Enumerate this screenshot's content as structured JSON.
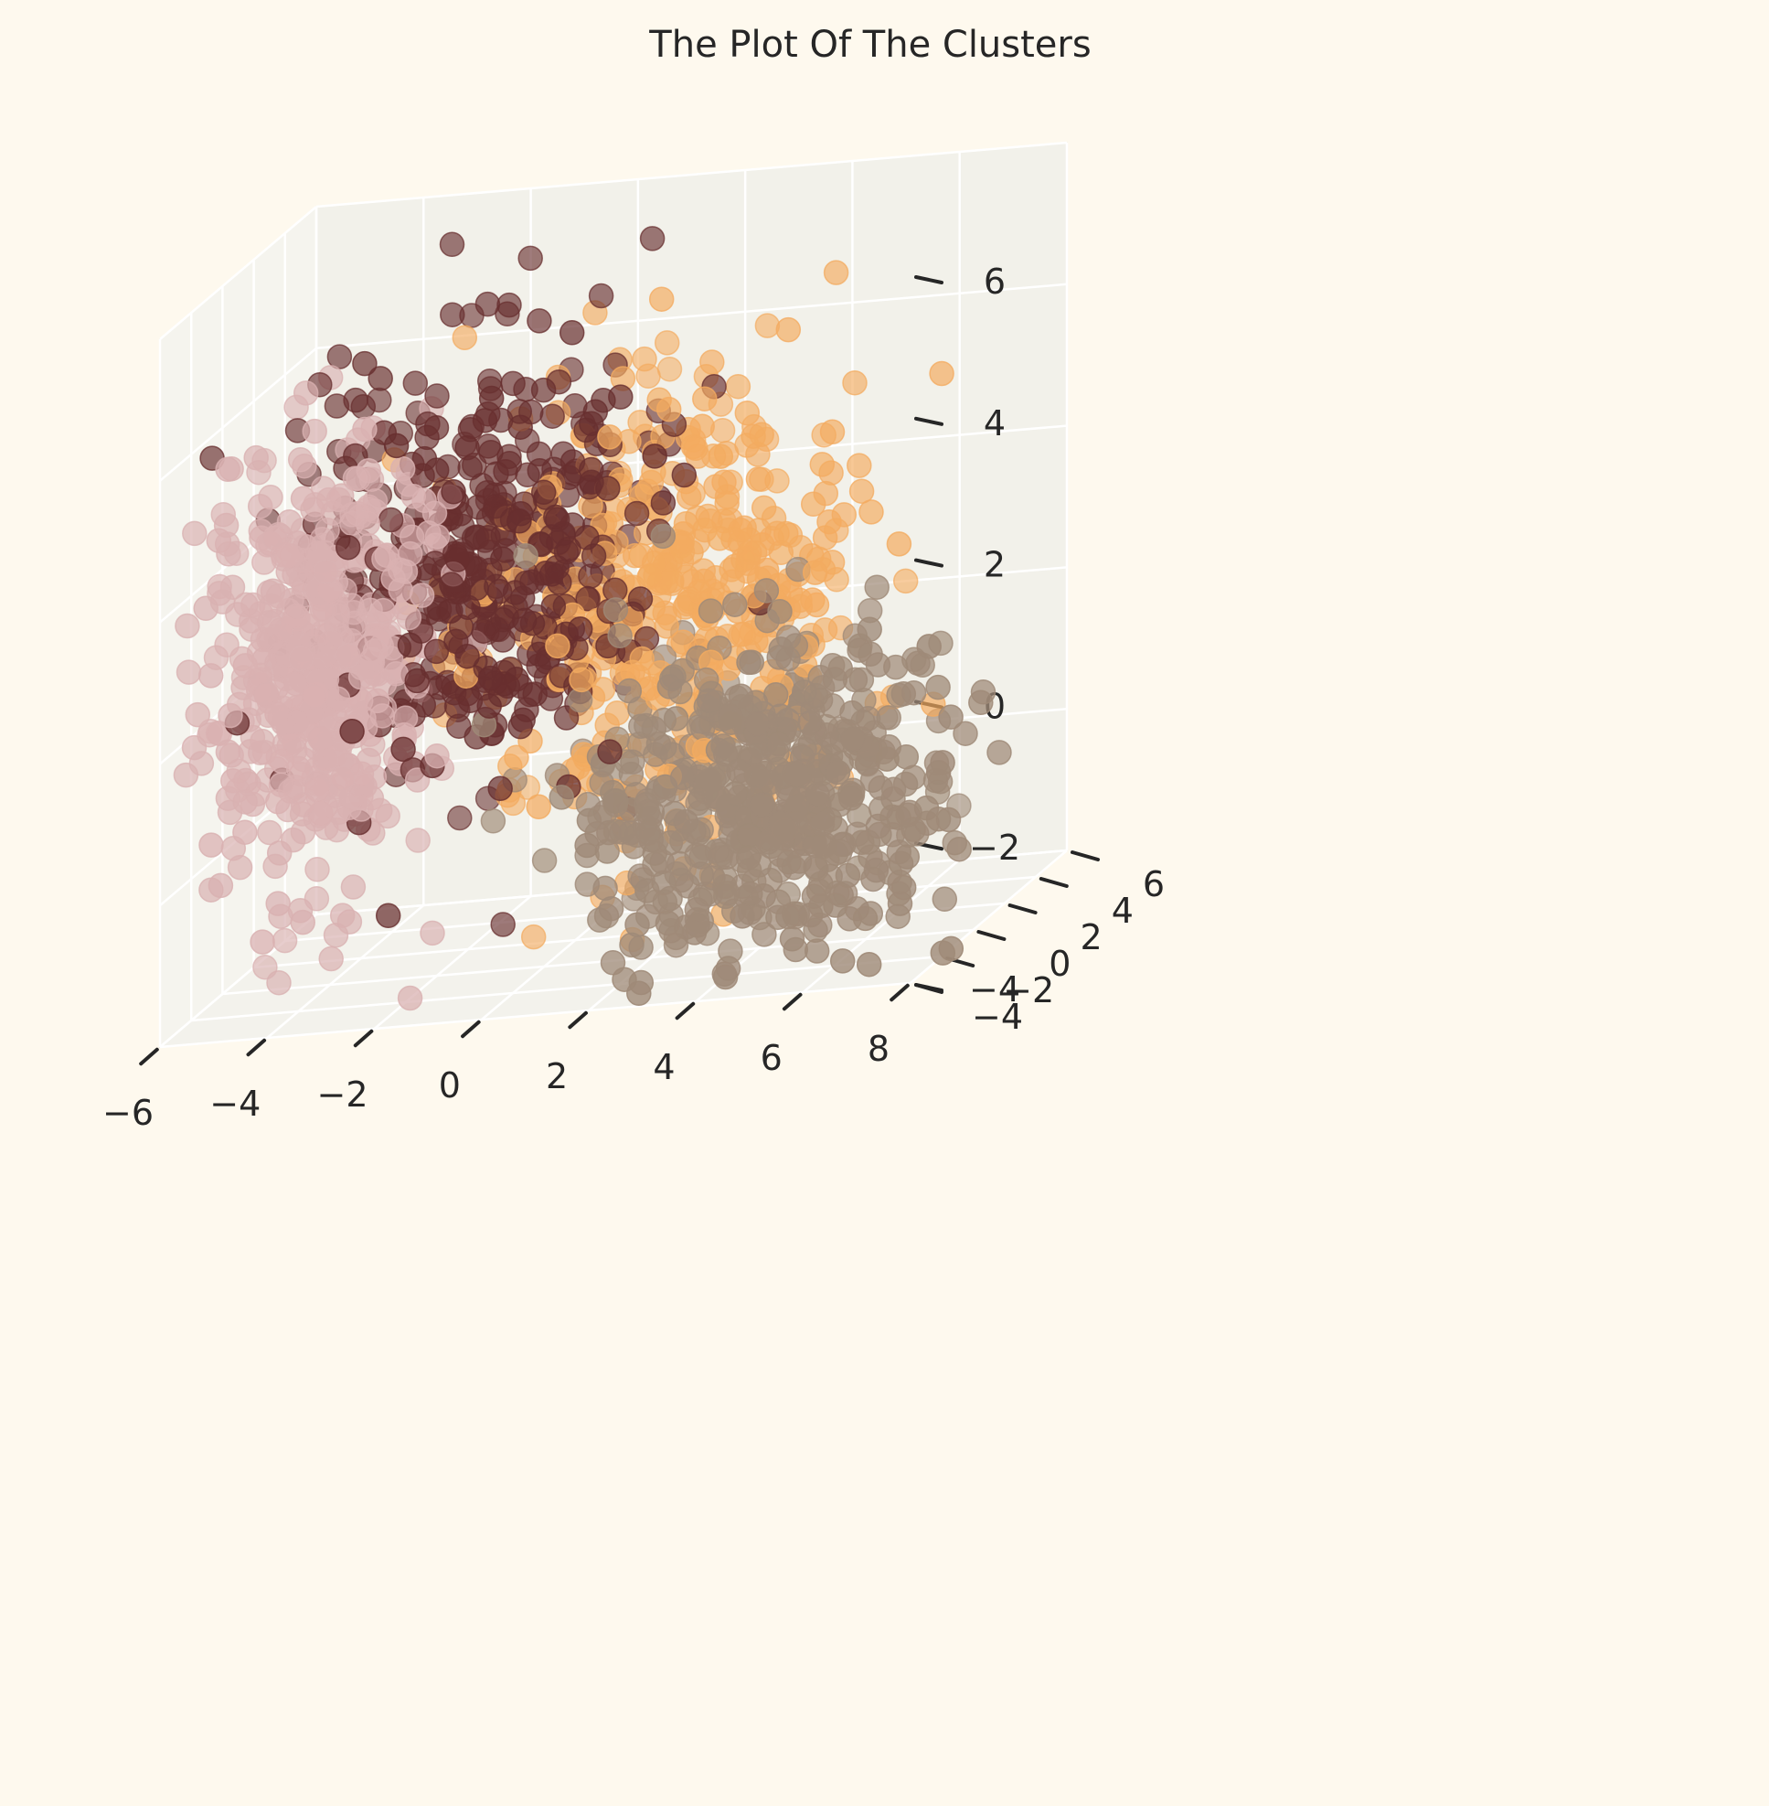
{
  "chart_data": {
    "type": "scatter",
    "projection": "3d",
    "title": "The Plot Of The Clusters",
    "xlabel": "",
    "ylabel": "",
    "zlabel": "",
    "xlim": [
      -6,
      8
    ],
    "ylim": [
      -4,
      6
    ],
    "zlim": [
      -4,
      6
    ],
    "x_ticks": [
      "−6",
      "−4",
      "−2",
      "0",
      "2",
      "4",
      "6",
      "8"
    ],
    "y_ticks": [
      "−4",
      "−2",
      "0",
      "2",
      "4",
      "6"
    ],
    "z_ticks": [
      "−4",
      "−2",
      "0",
      "2",
      "4",
      "6"
    ],
    "grid": true,
    "legend": "none",
    "background_color": "#FEF9EE",
    "pane_color": "#F2F1EA",
    "series": [
      {
        "color": "#682F2F",
        "center": [
          -1.5,
          1.5,
          1.5
        ],
        "spread": [
          1.6,
          1.4,
          1.5
        ],
        "count": 420
      },
      {
        "color": "#D9B1B1",
        "center": [
          -4.0,
          -0.5,
          0.5
        ],
        "spread": [
          0.9,
          1.4,
          1.5
        ],
        "count": 520
      },
      {
        "color": "#F3AB60",
        "center": [
          1.5,
          3.0,
          0.5
        ],
        "spread": [
          1.8,
          1.3,
          1.6
        ],
        "count": 460
      },
      {
        "color": "#9F8A78",
        "center": [
          4.0,
          0.5,
          -2.0
        ],
        "spread": [
          1.7,
          1.6,
          1.2
        ],
        "count": 560
      }
    ]
  }
}
